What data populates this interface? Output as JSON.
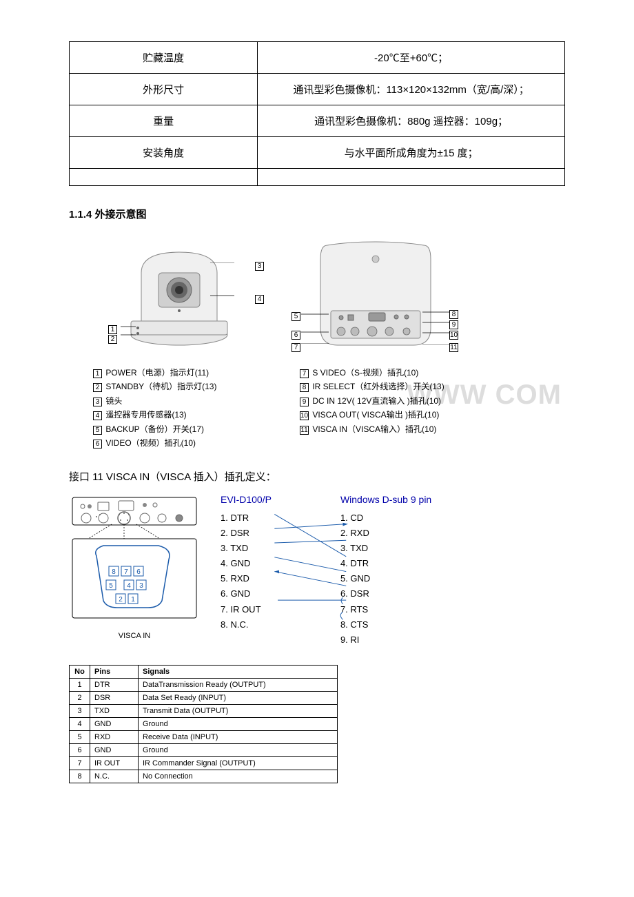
{
  "spec_table": {
    "rows": [
      {
        "label": "贮藏温度",
        "value": "-20℃至+60℃；"
      },
      {
        "label": "外形尺寸",
        "value": "通讯型彩色摄像机：113×120×132mm（宽/高/深）；"
      },
      {
        "label": "重量",
        "value": "通讯型彩色摄像机：880g 遥控器：109g；"
      },
      {
        "label": "安装角度",
        "value": "与水平面所成角度为±15 度；"
      },
      {
        "label": "",
        "value": ""
      }
    ]
  },
  "section_heading": "1.1.4 外接示意图",
  "diagram": {
    "labels_left": [
      "POWER（电源）指示灯(11)",
      "STANDBY（待机）指示灯(13)",
      "镜头",
      "遥控器专用传感器(13)",
      "BACKUP（备份）开关(17)",
      "VIDEO（视频）插孔(10)"
    ],
    "labels_right": [
      "S VIDEO（S-视频）插孔(10)",
      "IR SELECT（红外线选择）开关(13)",
      "DC IN 12V( 12V直流输入 )插孔(10)",
      "VISCA OUT( VISCA输出 )插孔(10)",
      "VISCA IN（VISCA输入）插孔(10)"
    ],
    "front_callouts": [
      "1",
      "2",
      "3",
      "4"
    ],
    "rear_callouts": [
      "5",
      "6",
      "7",
      "8",
      "9",
      "10",
      "11"
    ]
  },
  "watermark": "WWW                      COM",
  "visca_heading": "接口 11 VISCA IN（VISCA 插入）插孔定义：",
  "visca": {
    "connector_label": "VISCA IN",
    "pinout_left": {
      "title": "EVI-D100/P",
      "pins": [
        "1. DTR",
        "2. DSR",
        "3. TXD",
        "4. GND",
        "5. RXD",
        "6. GND",
        "7. IR OUT",
        "8. N.C."
      ]
    },
    "pinout_right": {
      "title": "Windows D-sub 9 pin",
      "pins": [
        "1. CD",
        "2. RXD",
        "3. TXD",
        "4. DTR",
        "5. GND",
        "6. DSR",
        "7. RTS",
        "8. CTS",
        "9. RI"
      ]
    }
  },
  "pin_table": {
    "headers": [
      "No",
      "Pins",
      "Signals"
    ],
    "rows": [
      [
        "1",
        "DTR",
        "DataTransmission Ready (OUTPUT)"
      ],
      [
        "2",
        "DSR",
        "Data Set Ready (INPUT)"
      ],
      [
        "3",
        "TXD",
        "Transmit Data (OUTPUT)"
      ],
      [
        "4",
        "GND",
        "Ground"
      ],
      [
        "5",
        "RXD",
        "Receive Data (INPUT)"
      ],
      [
        "6",
        "GND",
        "Ground"
      ],
      [
        "7",
        "IR OUT",
        "IR Commander Signal (OUTPUT)"
      ],
      [
        "8",
        "N.C.",
        "No Connection"
      ]
    ]
  },
  "colors": {
    "border": "#000000",
    "text": "#000000",
    "heading_blue": "#0000aa",
    "watermark": "#dddddd",
    "background": "#ffffff"
  }
}
